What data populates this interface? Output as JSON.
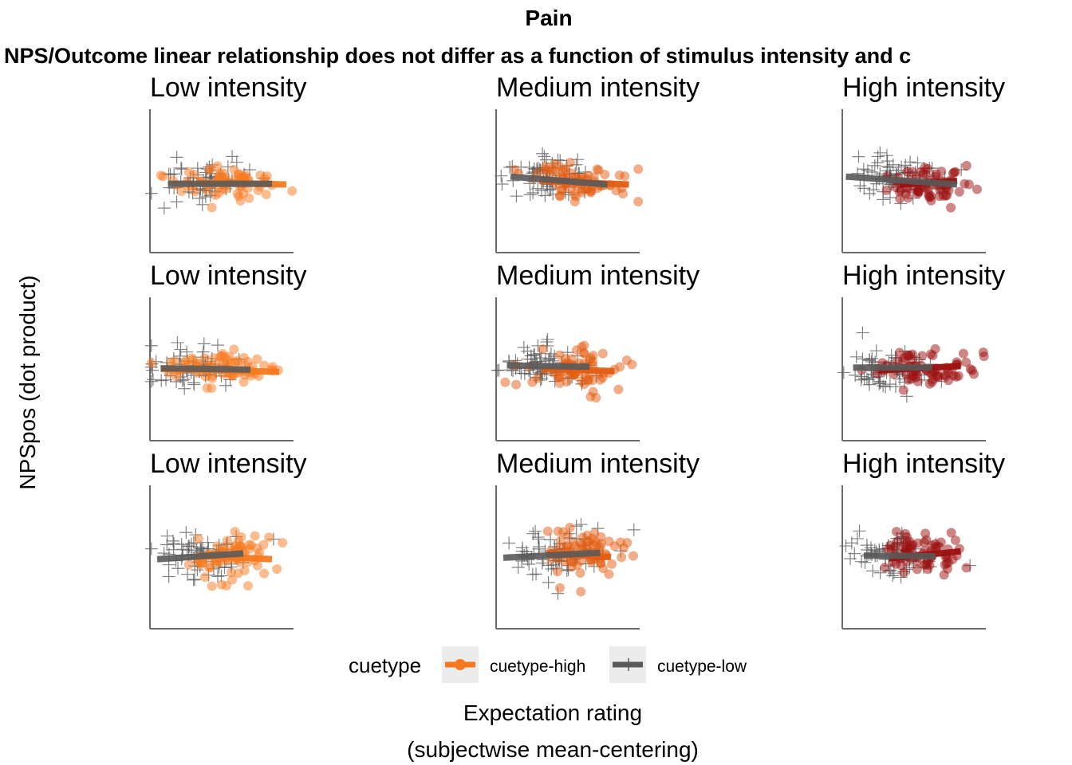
{
  "chart_data": {
    "type": "scatter",
    "title": "Pain",
    "subtitle": "NPS/Outcome linear relationship does not differ as a function of stimulus intensity and c",
    "xlabel_line1": "Expectation rating",
    "xlabel_line2": "(subjectwise mean-centering)",
    "ylabel": "NPSpos (dot product)",
    "legend": {
      "title": "cuetype",
      "position": "bottom",
      "entries": [
        {
          "label": "cuetype-high",
          "marker": "circle",
          "color": "#f7791f"
        },
        {
          "label": "cuetype-low",
          "marker": "cross",
          "color": "#5a5a5a"
        }
      ]
    },
    "grid": false,
    "panel_titles": [
      "Low intensity",
      "Medium intensity",
      "High intensity"
    ],
    "intensity_colors": {
      "Low intensity": "#f7791f",
      "Medium intensity": "#e35d12",
      "High intensity": "#9b1010"
    },
    "low_cue_color": "#5a5a5a",
    "xlim": [
      -1,
      1
    ],
    "ylim": [
      -1,
      1
    ],
    "panels": [
      {
        "row": 1,
        "col": 1,
        "intensity": "Low intensity",
        "high": {
          "cx": 0.15,
          "sx": 0.35,
          "cy": -0.02,
          "sy": 0.12,
          "n": 70,
          "line": {
            "x0": -0.35,
            "y0": -0.02,
            "x1": 0.9,
            "y1": -0.05
          }
        },
        "low": {
          "cx": -0.25,
          "sx": 0.3,
          "cy": 0.0,
          "sy": 0.14,
          "n": 70,
          "line": {
            "x0": -0.75,
            "y0": -0.04,
            "x1": 0.7,
            "y1": -0.04
          }
        }
      },
      {
        "row": 1,
        "col": 2,
        "intensity": "Medium intensity",
        "high": {
          "cx": 0.15,
          "sx": 0.35,
          "cy": 0.0,
          "sy": 0.14,
          "n": 70,
          "line": {
            "x0": -0.4,
            "y0": 0.0,
            "x1": 0.85,
            "y1": -0.05
          }
        },
        "low": {
          "cx": -0.3,
          "sx": 0.3,
          "cy": 0.05,
          "sy": 0.15,
          "n": 70,
          "line": {
            "x0": -0.8,
            "y0": 0.06,
            "x1": 0.55,
            "y1": -0.05
          }
        }
      },
      {
        "row": 1,
        "col": 3,
        "intensity": "High intensity",
        "high": {
          "cx": 0.2,
          "sx": 0.3,
          "cy": -0.02,
          "sy": 0.14,
          "n": 70,
          "line": {
            "x0": -0.2,
            "y0": -0.05,
            "x1": 0.6,
            "y1": 0.0
          }
        },
        "low": {
          "cx": -0.25,
          "sx": 0.3,
          "cy": 0.05,
          "sy": 0.14,
          "n": 70,
          "line": {
            "x0": -0.95,
            "y0": 0.06,
            "x1": 0.6,
            "y1": -0.05
          }
        }
      },
      {
        "row": 2,
        "col": 1,
        "intensity": "Low intensity",
        "high": {
          "cx": 0.0,
          "sx": 0.4,
          "cy": 0.02,
          "sy": 0.12,
          "n": 70,
          "line": {
            "x0": -0.85,
            "y0": 0.0,
            "x1": 0.8,
            "y1": -0.04
          }
        },
        "low": {
          "cx": -0.35,
          "sx": 0.3,
          "cy": 0.05,
          "sy": 0.15,
          "n": 70,
          "line": {
            "x0": -0.85,
            "y0": 0.01,
            "x1": 0.4,
            "y1": -0.01
          }
        }
      },
      {
        "row": 2,
        "col": 2,
        "intensity": "Medium intensity",
        "high": {
          "cx": 0.15,
          "sx": 0.35,
          "cy": -0.02,
          "sy": 0.14,
          "n": 70,
          "line": {
            "x0": -0.35,
            "y0": 0.0,
            "x1": 0.65,
            "y1": -0.03
          }
        },
        "low": {
          "cx": -0.3,
          "sx": 0.3,
          "cy": 0.05,
          "sy": 0.14,
          "n": 70,
          "line": {
            "x0": -0.85,
            "y0": 0.05,
            "x1": 0.3,
            "y1": 0.03
          }
        }
      },
      {
        "row": 2,
        "col": 3,
        "intensity": "High intensity",
        "high": {
          "cx": 0.15,
          "sx": 0.35,
          "cy": 0.02,
          "sy": 0.14,
          "n": 70,
          "line": {
            "x0": -0.5,
            "y0": -0.02,
            "x1": 0.65,
            "y1": 0.04
          }
        },
        "low": {
          "cx": -0.35,
          "sx": 0.3,
          "cy": 0.0,
          "sy": 0.15,
          "n": 70,
          "line": {
            "x0": -0.85,
            "y0": 0.02,
            "x1": 0.25,
            "y1": 0.02
          }
        }
      },
      {
        "row": 3,
        "col": 1,
        "intensity": "Low intensity",
        "high": {
          "cx": 0.15,
          "sx": 0.3,
          "cy": 0.0,
          "sy": 0.15,
          "n": 70,
          "line": {
            "x0": -0.35,
            "y0": 0.02,
            "x1": 0.7,
            "y1": -0.03
          }
        },
        "low": {
          "cx": -0.25,
          "sx": 0.35,
          "cy": 0.05,
          "sy": 0.15,
          "n": 70,
          "line": {
            "x0": -0.9,
            "y0": -0.03,
            "x1": 0.3,
            "y1": 0.05
          }
        }
      },
      {
        "row": 3,
        "col": 2,
        "intensity": "Medium intensity",
        "high": {
          "cx": 0.2,
          "sx": 0.3,
          "cy": 0.05,
          "sy": 0.16,
          "n": 70,
          "line": {
            "x0": -0.3,
            "y0": 0.05,
            "x1": 0.6,
            "y1": 0.0
          }
        },
        "low": {
          "cx": -0.2,
          "sx": 0.35,
          "cy": 0.05,
          "sy": 0.16,
          "n": 70,
          "line": {
            "x0": -0.9,
            "y0": -0.01,
            "x1": 0.45,
            "y1": 0.06
          }
        }
      },
      {
        "row": 3,
        "col": 3,
        "intensity": "High intensity",
        "high": {
          "cx": 0.15,
          "sx": 0.3,
          "cy": 0.05,
          "sy": 0.18,
          "n": 70,
          "line": {
            "x0": -0.35,
            "y0": -0.02,
            "x1": 0.65,
            "y1": 0.08
          }
        },
        "low": {
          "cx": -0.35,
          "sx": 0.3,
          "cy": 0.05,
          "sy": 0.16,
          "n": 70,
          "line": {
            "x0": -0.7,
            "y0": 0.02,
            "x1": 0.3,
            "y1": 0.01
          }
        }
      }
    ]
  }
}
